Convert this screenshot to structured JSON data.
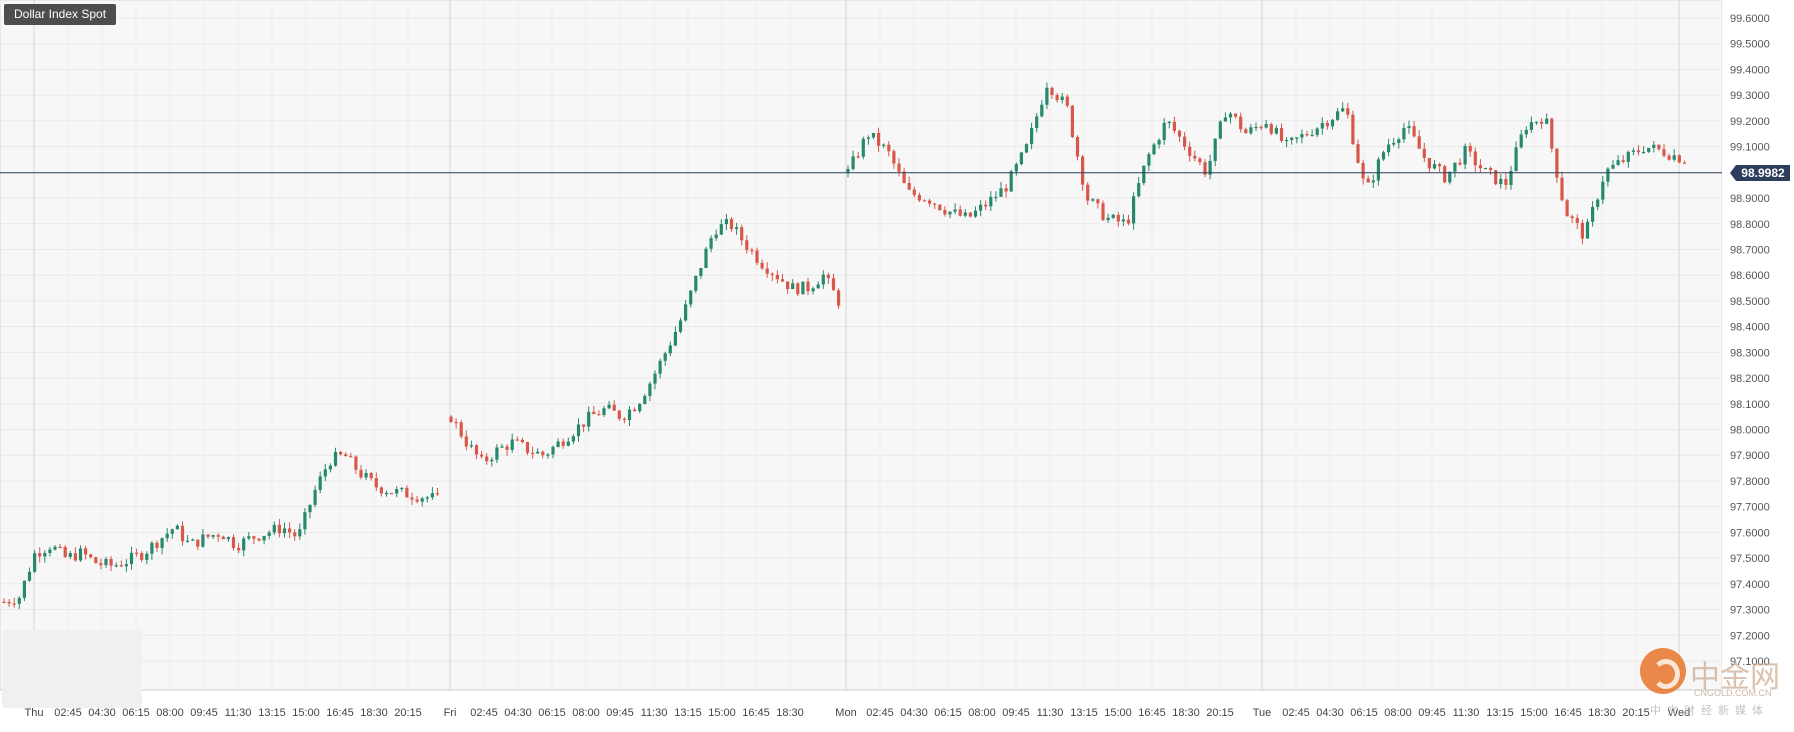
{
  "chart_data": {
    "type": "candlestick",
    "title": "Dollar Index Spot",
    "last_price_label": "98.9982",
    "last_price": 98.9982,
    "ylim": [
      97.1,
      99.65
    ],
    "y_ticks": [
      "99.6000",
      "99.5000",
      "99.4000",
      "99.3000",
      "99.2000",
      "99.1000",
      "98.9000",
      "98.8000",
      "98.7000",
      "98.6000",
      "98.5000",
      "98.4000",
      "98.3000",
      "98.2000",
      "98.1000",
      "98.0000",
      "97.9000",
      "97.8000",
      "97.7000",
      "97.6000",
      "97.5000",
      "97.4000",
      "97.3000",
      "97.2000",
      "97.1000"
    ],
    "x_tick_labels": [
      "Thu",
      "02:45",
      "04:30",
      "06:15",
      "08:00",
      "09:45",
      "11:30",
      "13:15",
      "15:00",
      "16:45",
      "18:30",
      "20:15",
      "Fri",
      "02:45",
      "04:30",
      "06:15",
      "08:00",
      "09:45",
      "11:30",
      "13:15",
      "15:00",
      "16:45",
      "18:30",
      "Mon",
      "02:45",
      "04:30",
      "06:15",
      "08:00",
      "09:45",
      "11:30",
      "13:15",
      "15:00",
      "16:45",
      "18:30",
      "20:15",
      "Tue",
      "02:45",
      "04:30",
      "06:15",
      "08:00",
      "09:45",
      "11:30",
      "13:15",
      "15:00",
      "16:45",
      "18:30",
      "20:15",
      "Wed"
    ],
    "day_separators": [
      "Thu",
      "Fri",
      "Mon",
      "Tue",
      "Wed"
    ],
    "grid": true,
    "colors": {
      "up": "#26896c",
      "down": "#d9574a",
      "grid": "#e8e8e8",
      "separator": "#d4d4d4",
      "price_line": "#2c3e5c"
    },
    "days": [
      {
        "label": "Thu",
        "anchors": [
          97.33,
          97.35,
          97.52,
          97.55,
          97.5,
          97.52,
          97.48,
          97.47,
          97.49,
          97.52,
          97.57,
          97.62,
          97.55,
          97.58,
          97.6,
          97.55,
          97.58,
          97.6,
          97.62,
          97.58,
          97.75,
          97.88,
          97.9,
          97.83,
          97.78,
          97.76,
          97.75,
          97.74,
          97.73
        ]
      },
      {
        "label": "Fri",
        "anchors": [
          98.05,
          97.95,
          97.87,
          97.92,
          97.95,
          97.92,
          97.9,
          97.95,
          98.0,
          98.05,
          98.08,
          98.05,
          98.1,
          98.2,
          98.32,
          98.45,
          98.62,
          98.78,
          98.8,
          98.72,
          98.65,
          98.6,
          98.55,
          98.55,
          98.6,
          98.5
        ]
      },
      {
        "label": "Mon",
        "anchors": [
          99.0,
          99.15,
          99.08,
          98.92,
          98.9,
          98.85,
          98.82,
          98.88,
          98.95,
          99.1,
          99.35,
          99.25,
          98.9,
          98.82,
          98.8,
          99.05,
          99.2,
          99.1,
          99.0,
          99.25,
          99.15,
          99.2,
          99.1,
          99.15,
          99.2,
          99.25,
          98.92,
          99.1,
          99.18,
          99.05,
          98.98,
          99.08,
          99.0,
          98.95,
          99.18,
          99.22,
          98.85,
          98.75,
          99.0,
          99.05,
          99.1,
          99.08,
          99.05
        ]
      }
    ],
    "xlabel": "",
    "ylabel": ""
  }
}
